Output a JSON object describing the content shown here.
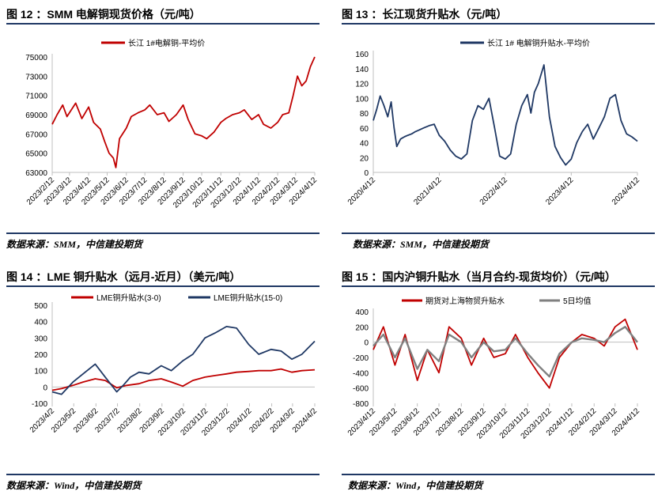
{
  "panels": [
    {
      "title": "图 12 ：SMM 电解铜现货价格（元/吨）",
      "source": "数据来源：SMM，中信建投期货"
    },
    {
      "title": "图 13 ：长江现货升贴水（元/吨）",
      "source": "数据来源：SMM，中信建投期货"
    },
    {
      "title": "图 14 ：LME 铜升贴水（远月-近月）（美元/吨）",
      "source": "数据来源：Wind，中信建投期货"
    },
    {
      "title": "图 15 ：国内沪铜升贴水（当月合约-现货均价）（元/吨）",
      "source": "数据来源：Wind，中信建投期货"
    }
  ],
  "chart_data": [
    {
      "type": "line",
      "legend_position": "top",
      "series": [
        {
          "name": "长江 1#电解铜-平均价",
          "color": "#c00000",
          "x": [
            "2023/2/12",
            "2023/2/20",
            "2023/3/1",
            "2023/3/8",
            "2023/3/15",
            "2023/3/22",
            "2023/4/1",
            "2023/4/12",
            "2023/4/20",
            "2023/5/1",
            "2023/5/8",
            "2023/5/15",
            "2023/5/22",
            "2023/5/26",
            "2023/6/1",
            "2023/6/12",
            "2023/6/20",
            "2023/7/1",
            "2023/7/12",
            "2023/7/20",
            "2023/8/1",
            "2023/8/12",
            "2023/8/20",
            "2023/9/1",
            "2023/9/12",
            "2023/9/20",
            "2023/10/1",
            "2023/10/12",
            "2023/10/20",
            "2023/11/1",
            "2023/11/12",
            "2023/11/20",
            "2023/12/1",
            "2023/12/12",
            "2023/12/20",
            "2024/1/1",
            "2024/1/12",
            "2024/1/20",
            "2024/2/1",
            "2024/2/12",
            "2024/2/20",
            "2024/3/1",
            "2024/3/8",
            "2024/3/15",
            "2024/3/22",
            "2024/3/29",
            "2024/4/5",
            "2024/4/12"
          ],
          "values": [
            68000,
            69000,
            70000,
            68800,
            69500,
            70200,
            68600,
            69800,
            68200,
            67500,
            66200,
            65000,
            64500,
            63500,
            66500,
            67600,
            68800,
            69200,
            69500,
            70000,
            69000,
            69200,
            68300,
            69000,
            70000,
            68500,
            67000,
            66800,
            66500,
            67200,
            68200,
            68600,
            69000,
            69200,
            69500,
            68500,
            69000,
            68000,
            67600,
            68200,
            69000,
            69200,
            71000,
            73000,
            72000,
            72500,
            74000,
            75000
          ]
        }
      ],
      "ylim": [
        63000,
        75000
      ],
      "yticks": [
        63000,
        65000,
        67000,
        69000,
        71000,
        73000,
        75000
      ],
      "xticks": [
        "2023/2/12",
        "2023/3/12",
        "2023/4/12",
        "2023/5/12",
        "2023/6/12",
        "2023/7/12",
        "2023/8/12",
        "2023/9/12",
        "2023/10/12",
        "2023/11/12",
        "2023/12/12",
        "2024/1/12",
        "2024/2/12",
        "2024/3/12",
        "2024/4/12"
      ],
      "grid": false
    },
    {
      "type": "line",
      "legend_position": "top",
      "series": [
        {
          "name": "长江 1# 电解铜升贴水-平均价",
          "color": "#1f3864",
          "x": [
            "2020/4/12",
            "2020/5/1",
            "2020/5/20",
            "2020/6/10",
            "2020/7/1",
            "2020/7/20",
            "2020/8/5",
            "2020/8/20",
            "2020/9/10",
            "2020/10/1",
            "2020/10/20",
            "2020/11/10",
            "2020/12/1",
            "2020/12/20",
            "2021/1/15",
            "2021/2/15",
            "2021/3/15",
            "2021/4/12",
            "2021/5/12",
            "2021/6/12",
            "2021/7/12",
            "2021/8/12",
            "2021/9/12",
            "2021/10/12",
            "2021/11/12",
            "2021/12/12",
            "2022/1/12",
            "2022/2/12",
            "2022/3/12",
            "2022/4/12",
            "2022/5/12",
            "2022/6/12",
            "2022/7/12",
            "2022/8/12",
            "2022/9/1",
            "2022/9/20",
            "2022/10/12",
            "2022/11/12",
            "2022/12/12",
            "2023/1/12",
            "2023/2/12",
            "2023/3/12",
            "2023/4/12",
            "2023/5/12",
            "2023/6/12",
            "2023/7/12",
            "2023/8/12",
            "2023/9/12",
            "2023/10/12",
            "2023/11/12",
            "2023/12/12",
            "2024/1/12",
            "2024/2/12",
            "2024/3/12",
            "2024/4/12"
          ],
          "values": [
            70,
            85,
            103,
            90,
            75,
            95,
            60,
            35,
            45,
            48,
            50,
            52,
            55,
            57,
            60,
            63,
            65,
            50,
            42,
            30,
            22,
            18,
            25,
            70,
            90,
            85,
            100,
            60,
            22,
            18,
            25,
            65,
            90,
            105,
            80,
            108,
            120,
            145,
            75,
            35,
            20,
            10,
            18,
            40,
            55,
            65,
            45,
            60,
            75,
            100,
            105,
            70,
            52,
            48,
            42
          ]
        }
      ],
      "ylim": [
        0,
        160
      ],
      "yticks": [
        0,
        20,
        40,
        60,
        80,
        100,
        120,
        140,
        160
      ],
      "xticks": [
        "2020/4/12",
        "2021/4/12",
        "2022/4/12",
        "2023/4/12",
        "2024/4/12"
      ],
      "grid": false
    },
    {
      "type": "line",
      "legend_position": "top",
      "series": [
        {
          "name": "LME铜升贴水(3-0)",
          "color": "#c00000",
          "x": [
            "2023/4/2",
            "2023/4/15",
            "2023/5/1",
            "2023/5/15",
            "2023/6/1",
            "2023/6/15",
            "2023/7/1",
            "2023/7/15",
            "2023/8/1",
            "2023/8/15",
            "2023/9/1",
            "2023/9/15",
            "2023/10/1",
            "2023/10/15",
            "2023/11/1",
            "2023/11/15",
            "2023/12/1",
            "2023/12/15",
            "2024/1/1",
            "2024/1/15",
            "2024/2/1",
            "2024/2/15",
            "2024/3/1",
            "2024/3/15",
            "2024/4/2"
          ],
          "values": [
            -20,
            -10,
            10,
            30,
            50,
            40,
            -5,
            10,
            20,
            40,
            50,
            30,
            5,
            40,
            60,
            70,
            80,
            90,
            95,
            100,
            100,
            110,
            90,
            100,
            105
          ]
        },
        {
          "name": "LME铜升贴水(15-0)",
          "color": "#1f3864",
          "x": [
            "2023/4/2",
            "2023/4/15",
            "2023/5/1",
            "2023/5/15",
            "2023/6/1",
            "2023/6/15",
            "2023/7/1",
            "2023/7/10",
            "2023/7/20",
            "2023/8/1",
            "2023/8/15",
            "2023/9/1",
            "2023/9/15",
            "2023/10/1",
            "2023/10/15",
            "2023/11/1",
            "2023/11/15",
            "2023/12/1",
            "2023/12/15",
            "2024/1/1",
            "2024/1/15",
            "2024/2/1",
            "2024/2/15",
            "2024/3/1",
            "2024/3/15",
            "2024/4/2"
          ],
          "values": [
            -30,
            -45,
            30,
            80,
            140,
            60,
            -30,
            10,
            60,
            90,
            80,
            130,
            100,
            160,
            200,
            300,
            330,
            370,
            360,
            260,
            200,
            230,
            220,
            170,
            200,
            280
          ]
        }
      ],
      "ylim": [
        -100,
        500
      ],
      "yticks": [
        -100,
        0,
        100,
        200,
        300,
        400,
        500
      ],
      "xticks": [
        "2023/4/2",
        "2023/5/2",
        "2023/6/2",
        "2023/7/2",
        "2023/8/2",
        "2023/9/2",
        "2023/10/2",
        "2023/11/2",
        "2023/12/2",
        "2024/1/2",
        "2024/2/2",
        "2024/3/2",
        "2024/4/2"
      ],
      "grid": false
    },
    {
      "type": "line",
      "legend_position": "top",
      "series": [
        {
          "name": "期货对上海物贸升贴水",
          "color": "#c00000",
          "x": [
            "2023/4/12",
            "2023/4/26",
            "2023/5/12",
            "2023/5/26",
            "2023/6/12",
            "2023/6/26",
            "2023/7/12",
            "2023/7/26",
            "2023/8/12",
            "2023/8/26",
            "2023/9/12",
            "2023/9/26",
            "2023/10/12",
            "2023/10/26",
            "2023/11/12",
            "2023/11/26",
            "2023/12/12",
            "2023/12/26",
            "2024/1/12",
            "2024/1/26",
            "2024/2/12",
            "2024/2/26",
            "2024/3/12",
            "2024/3/26",
            "2024/4/12"
          ],
          "values": [
            -100,
            200,
            -300,
            100,
            -500,
            -100,
            -400,
            200,
            50,
            -300,
            50,
            -200,
            -150,
            100,
            -200,
            -400,
            -600,
            -200,
            0,
            100,
            50,
            -50,
            200,
            300,
            -100
          ]
        },
        {
          "name": "5日均值",
          "color": "#808080",
          "x": [
            "2023/4/12",
            "2023/4/26",
            "2023/5/12",
            "2023/5/26",
            "2023/6/12",
            "2023/6/26",
            "2023/7/12",
            "2023/7/26",
            "2023/8/12",
            "2023/8/26",
            "2023/9/12",
            "2023/9/26",
            "2023/10/12",
            "2023/10/26",
            "2023/11/12",
            "2023/11/26",
            "2023/12/12",
            "2023/12/26",
            "2024/1/12",
            "2024/1/26",
            "2024/2/12",
            "2024/2/26",
            "2024/3/12",
            "2024/3/26",
            "2024/4/12"
          ],
          "values": [
            -50,
            100,
            -200,
            50,
            -350,
            -100,
            -250,
            100,
            0,
            -200,
            0,
            -120,
            -100,
            50,
            -150,
            -300,
            -450,
            -150,
            0,
            50,
            30,
            0,
            120,
            200,
            0
          ]
        }
      ],
      "ylim": [
        -800,
        400
      ],
      "yticks": [
        -800,
        -600,
        -400,
        -200,
        0,
        200,
        400
      ],
      "xticks": [
        "2023/4/12",
        "2023/5/12",
        "2023/6/12",
        "2023/7/12",
        "2023/8/12",
        "2023/9/12",
        "2023/10/12",
        "2023/11/12",
        "2023/12/12",
        "2024/1/12",
        "2024/2/12",
        "2024/3/12",
        "2024/4/12"
      ],
      "grid": false
    }
  ]
}
